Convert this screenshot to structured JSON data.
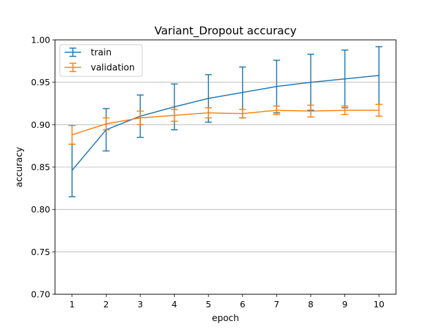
{
  "chart_data": {
    "type": "line",
    "title": "Variant_Dropout accuracy",
    "xlabel": "epoch",
    "ylabel": "accuracy",
    "x": [
      1,
      2,
      3,
      4,
      5,
      6,
      7,
      8,
      9,
      10
    ],
    "xlim": [
      0.5,
      10.5
    ],
    "ylim": [
      0.7,
      1.0
    ],
    "yticks": [
      "0.70",
      "0.75",
      "0.80",
      "0.85",
      "0.90",
      "0.95",
      "1.00"
    ],
    "grid": "horizontal",
    "legend_position": "top-left",
    "series": [
      {
        "name": "train",
        "color": "#1f77b4",
        "values": [
          0.846,
          0.894,
          0.91,
          0.921,
          0.931,
          0.938,
          0.945,
          0.95,
          0.954,
          0.958
        ],
        "error": [
          0.031,
          0.025,
          0.025,
          0.027,
          0.028,
          0.03,
          0.031,
          0.033,
          0.034,
          0.034
        ]
      },
      {
        "name": "validation",
        "color": "#ff7f0e",
        "values": [
          0.888,
          0.901,
          0.908,
          0.911,
          0.914,
          0.913,
          0.917,
          0.916,
          0.917,
          0.917
        ],
        "error": [
          0.011,
          0.007,
          0.008,
          0.007,
          0.006,
          0.005,
          0.005,
          0.007,
          0.005,
          0.007
        ]
      }
    ]
  }
}
